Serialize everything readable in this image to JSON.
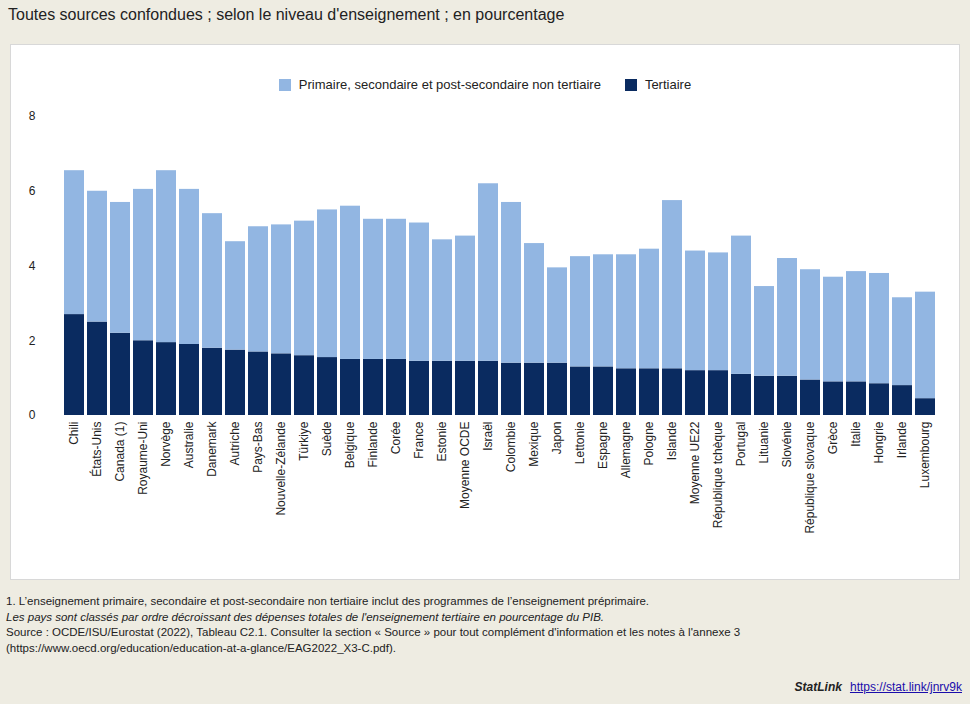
{
  "chart_data": {
    "type": "bar",
    "stacked": true,
    "title": "Toutes sources confondues ; selon le niveau d'enseignement ; en pourcentage",
    "categories": [
      "Chili",
      "États-Unis",
      "Canada (1)",
      "Royaume-Uni",
      "Norvège",
      "Australie",
      "Danemark",
      "Autriche",
      "Pays-Bas",
      "Nouvelle-Zélande",
      "Türkiye",
      "Suède",
      "Belgique",
      "Finlande",
      "Corée",
      "France",
      "Estonie",
      "Moyenne OCDE",
      "Israël",
      "Colombie",
      "Mexique",
      "Japon",
      "Lettonie",
      "Espagne",
      "Allemagne",
      "Pologne",
      "Islande",
      "Moyenne UE22",
      "République tchèque",
      "Portugal",
      "Lituanie",
      "Slovénie",
      "République slovaque",
      "Grèce",
      "Italie",
      "Hongrie",
      "Irlande",
      "Luxembourg"
    ],
    "series": [
      {
        "name": "Primaire, secondaire et post-secondaire non tertiaire",
        "color": "#92b6e2",
        "values": [
          3.85,
          3.5,
          3.5,
          4.05,
          4.6,
          4.15,
          3.6,
          2.9,
          3.35,
          3.45,
          3.6,
          3.95,
          4.1,
          3.75,
          3.75,
          3.7,
          3.25,
          3.35,
          4.75,
          4.3,
          3.2,
          2.55,
          2.95,
          3.0,
          3.05,
          3.2,
          4.5,
          3.2,
          3.15,
          3.7,
          2.4,
          3.15,
          2.95,
          2.8,
          2.95,
          2.95,
          2.35,
          2.85
        ]
      },
      {
        "name": "Tertiaire",
        "color": "#0a2b60",
        "values": [
          2.7,
          2.5,
          2.2,
          2.0,
          1.95,
          1.9,
          1.8,
          1.75,
          1.7,
          1.65,
          1.6,
          1.55,
          1.5,
          1.5,
          1.5,
          1.45,
          1.45,
          1.45,
          1.45,
          1.4,
          1.4,
          1.4,
          1.3,
          1.3,
          1.25,
          1.25,
          1.25,
          1.2,
          1.2,
          1.1,
          1.05,
          1.05,
          0.95,
          0.9,
          0.9,
          0.85,
          0.8,
          0.45
        ]
      }
    ],
    "ylim": [
      0,
      8
    ],
    "yticks": [
      0,
      2,
      4,
      6,
      8
    ],
    "grid": false,
    "legend": "top",
    "notes": [
      "1. L’enseignement primaire, secondaire et post-secondaire non tertiaire inclut des programmes de l’enseignement préprimaire.",
      "Les pays sont classés par ordre décroissant des dépenses totales de l'enseignement tertiaire en pourcentage du PIB."
    ],
    "source": "Source : OCDE/ISU/Eurostat (2022), Tableau C2.1. Consulter la section « Source » pour tout complément d'information et les notes à l'annexe 3 (https://www.oecd.org/education/education-at-a-glance/EAG2022_X3-C.pdf).",
    "statlink_label": "StatLink",
    "statlink": "https://stat.link/jnrv9k"
  }
}
